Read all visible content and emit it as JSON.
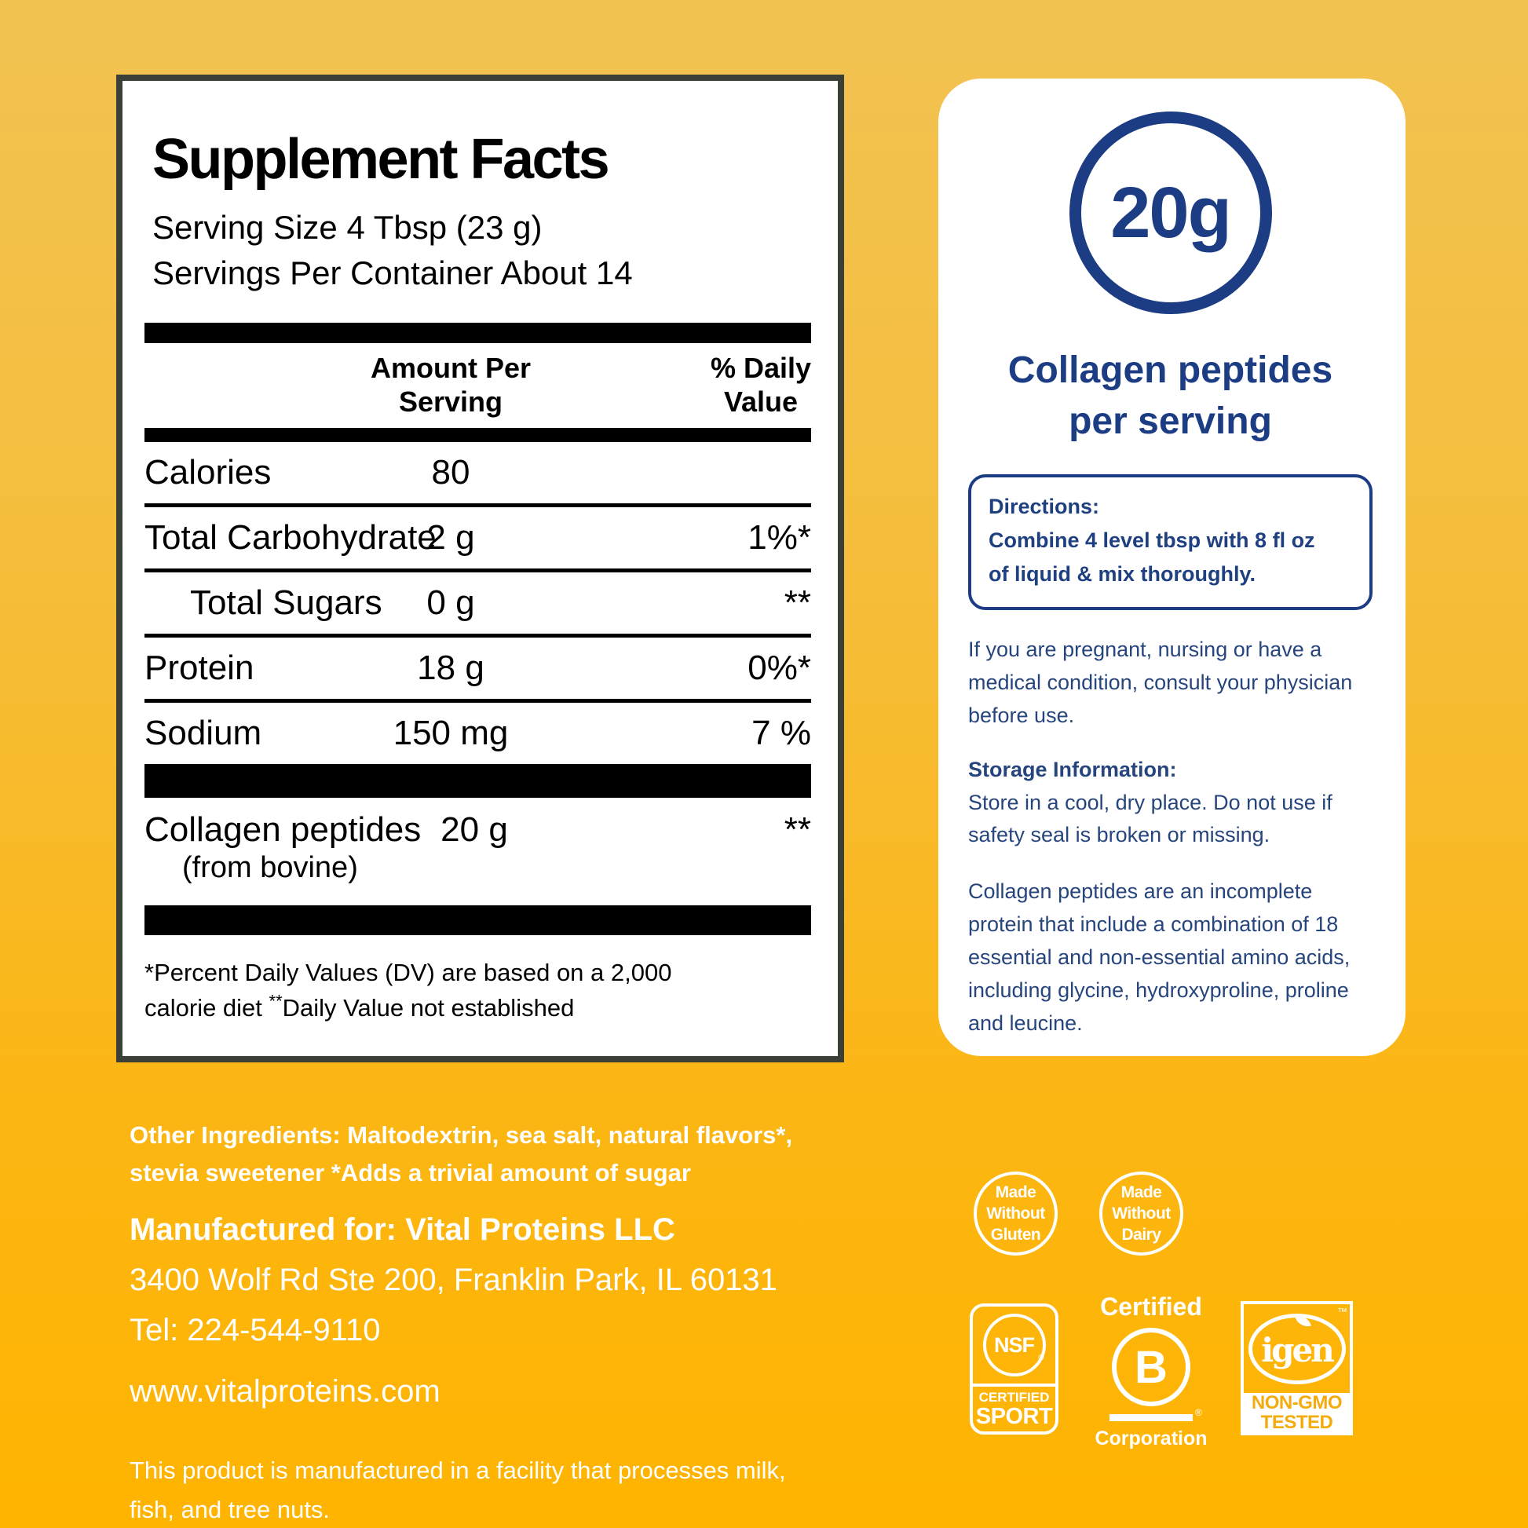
{
  "colors": {
    "background_top": "#f2c252",
    "background_bottom": "#ffb400",
    "panel_border": "#3a3f38",
    "navy_accent": "#1c3d84",
    "navy_body": "#27457d",
    "badge_white": "#ffffff",
    "nongmo_orange": "#f3ab0e",
    "table_black": "#000000"
  },
  "supplement": {
    "title": "Supplement Facts",
    "serving_size": "Serving Size 4 Tbsp (23 g)",
    "servings_per_container": "Servings Per Container About 14",
    "amount_header": [
      "Amount Per",
      "Serving"
    ],
    "dv_header": [
      "% Daily",
      "Value"
    ],
    "rows": [
      {
        "label": "Calories",
        "amount": "80",
        "dv": ""
      },
      {
        "label": "Total Carbohydrate",
        "amount": "2 g",
        "dv": "1%*"
      },
      {
        "label": "Total Sugars",
        "amount": "0 g",
        "dv": "**"
      },
      {
        "label": "Protein",
        "amount": "18 g",
        "dv": "0%*"
      },
      {
        "label": "Sodium",
        "amount": "150 mg",
        "dv": "7 %"
      }
    ],
    "collagen": {
      "label": "Collagen peptides",
      "source": "(from bovine)",
      "amount": "20 g",
      "dv": "**"
    },
    "footnote_line1": "*Percent Daily Values (DV) are based on a 2,000",
    "footnote2_text": "calorie diet ",
    "footnote2_sup": "**",
    "footnote2_rest": "Daily Value not established"
  },
  "panel": {
    "amount": "20g",
    "heading_line1": "Collagen peptides",
    "heading_line2": "per serving",
    "directions_label": "Directions:",
    "directions_line1": "Combine 4 level tbsp with 8 fl oz",
    "directions_line2": "of liquid & mix thoroughly.",
    "pregnancy_note": "If you are pregnant, nursing or have a medical condition, consult your physician before use.",
    "storage_label": "Storage Information:",
    "storage_note": "Store in a cool, dry place. Do not use if safety seal is broken or missing.",
    "collagen_note": "Collagen peptides are an incomplete protein that include a combination of 18 essential and non-essential amino acids, including glycine, hydroxyproline, proline and leucine."
  },
  "footer": {
    "other_ingredients_line1": "Other Ingredients: Maltodextrin, sea salt, natural flavors*,",
    "other_ingredients_line2": "stevia sweetener  *Adds a trivial amount of sugar",
    "manufactured_for": "Manufactured for: Vital Proteins LLC",
    "address": "3400 Wolf Rd Ste 200, Franklin Park, IL 60131",
    "tel": "Tel: 224-544-9110",
    "website": "www.vitalproteins.com",
    "facility_line1": "This product is manufactured in a facility that processes milk,",
    "facility_line2": "fish, and tree nuts."
  },
  "badges": {
    "made_without_gluten": [
      "Made",
      "Without",
      "Gluten"
    ],
    "made_without_dairy": [
      "Made",
      "Without",
      "Dairy"
    ],
    "nsf": {
      "acronym": "NSF",
      "reg": "®",
      "certified": "CERTIFIED",
      "sport": "SPORT"
    },
    "b_corp": {
      "certified": "Certified",
      "letter": "B",
      "reg": "®",
      "corporation": "Corporation"
    },
    "igen": {
      "wordmark": "igen",
      "tm": "™",
      "line1": "NON-GMO",
      "line2": "TESTED"
    }
  }
}
